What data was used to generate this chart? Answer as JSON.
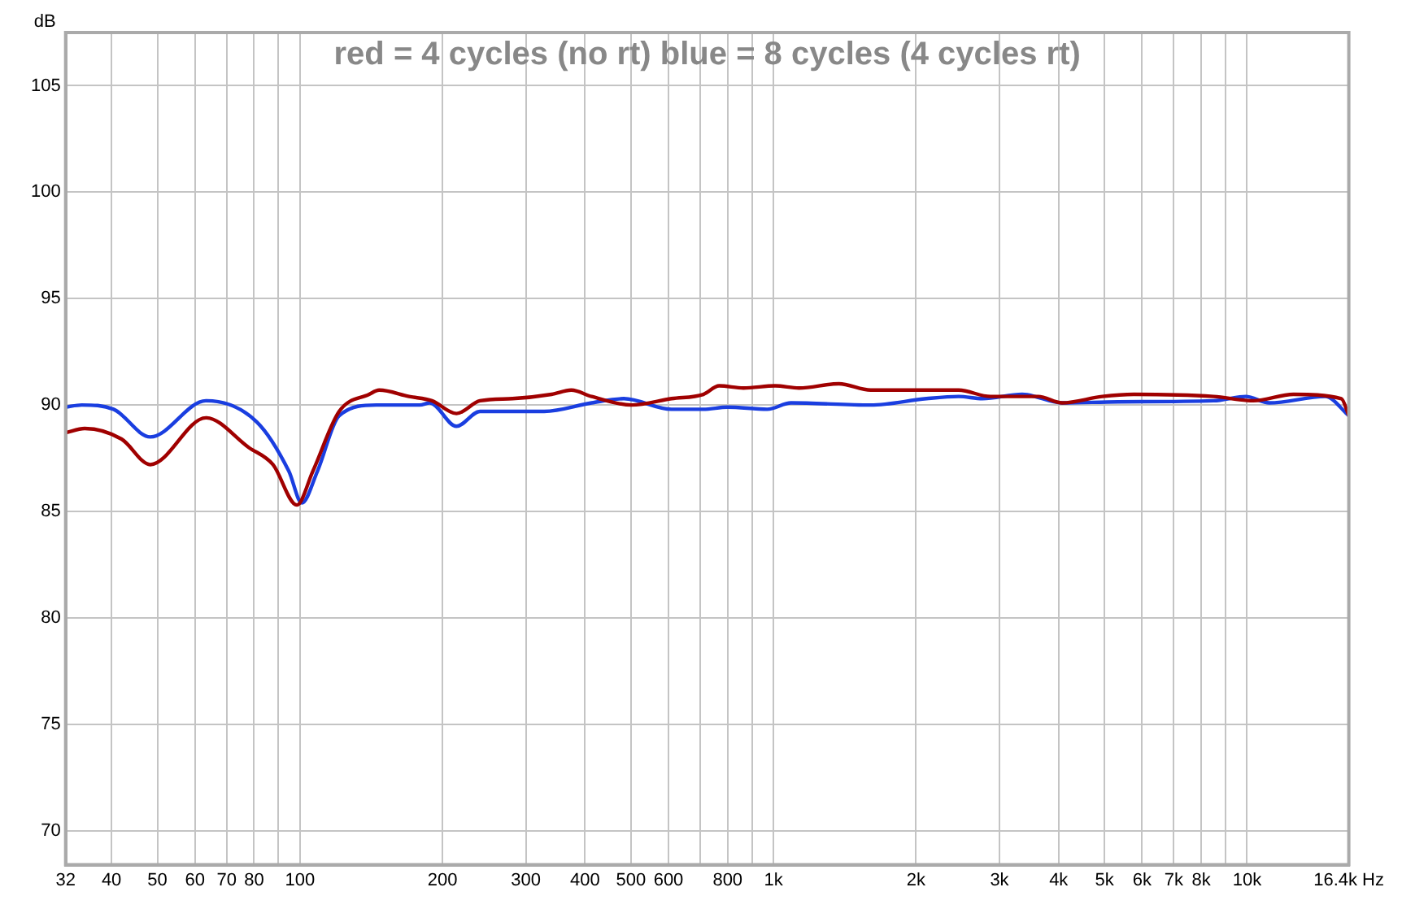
{
  "chart_data": {
    "type": "line",
    "title": "red = 4 cycles (no rt) blue = 8 cycles (4 cycles rt)",
    "ylabel": "dB",
    "log": "x",
    "grid": true,
    "legend": false,
    "marker": "none",
    "line_style": "solid",
    "xlim": [
      32,
      16400
    ],
    "xticks": [
      32,
      40,
      50,
      60,
      70,
      80,
      {
        "value": 90,
        "label": null
      },
      100,
      200,
      300,
      400,
      500,
      600,
      {
        "value": 700,
        "label": null
      },
      800,
      {
        "value": 900,
        "label": null
      },
      {
        "value": 1000,
        "label": "1k"
      },
      {
        "value": 2000,
        "label": "2k"
      },
      {
        "value": 3000,
        "label": "3k"
      },
      {
        "value": 4000,
        "label": "4k"
      },
      {
        "value": 5000,
        "label": "5k"
      },
      {
        "value": 6000,
        "label": "6k"
      },
      {
        "value": 7000,
        "label": "7k"
      },
      {
        "value": 8000,
        "label": "8k"
      },
      {
        "value": 9000,
        "label": null
      },
      {
        "value": 10000,
        "label": "10k"
      },
      {
        "value": 16400,
        "label": "16.4k Hz"
      }
    ],
    "ylim": [
      68.4,
      107.5
    ],
    "yticks": [
      70,
      75,
      80,
      85,
      90,
      95,
      100,
      105
    ],
    "series": [
      {
        "color": "#a00000",
        "x": [
          32,
          35.1,
          42,
          48.3,
          63.3,
          78,
          87.7,
          98.5,
          106.5,
          121,
          140,
          147,
          170,
          190,
          214,
          240,
          281,
          340,
          374,
          413,
          501,
          609,
          711,
          768,
          864,
          1008,
          1132,
          1374,
          1604,
          2104,
          2460,
          2871,
          3623,
          4068,
          4944,
          5770,
          8496,
          10314,
          12534,
          15818,
          16400
        ],
        "values": [
          88.7,
          88.9,
          88.4,
          87.2,
          89.4,
          88.0,
          87.2,
          85.3,
          86.9,
          89.7,
          90.5,
          90.7,
          90.4,
          90.2,
          89.6,
          90.2,
          90.3,
          90.5,
          90.7,
          90.4,
          90.0,
          90.3,
          90.5,
          90.9,
          90.8,
          90.9,
          90.8,
          91.0,
          90.7,
          90.7,
          90.7,
          90.4,
          90.4,
          90.1,
          90.4,
          90.5,
          90.4,
          90.2,
          90.5,
          90.3,
          89.5
        ]
      },
      {
        "color": "#1a3ee0",
        "x": [
          32,
          34.6,
          40.4,
          48.3,
          63.3,
          81.1,
          94.7,
          100.9,
          108.9,
          121,
          145,
          179,
          188,
          214,
          240,
          328,
          413,
          483,
          609,
          711,
          799,
          970,
          1089,
          1604,
          2104,
          2460,
          2762,
          3351,
          4068,
          5338,
          8496,
          9936,
          11146,
          14627,
          16400
        ],
        "values": [
          89.9,
          90.0,
          89.8,
          88.5,
          90.2,
          89.2,
          86.9,
          85.4,
          86.9,
          89.5,
          90.0,
          90.0,
          90.1,
          89.0,
          89.7,
          89.7,
          90.1,
          90.3,
          89.8,
          89.8,
          89.9,
          89.8,
          90.1,
          90.0,
          90.3,
          90.4,
          90.3,
          90.5,
          90.1,
          90.15,
          90.2,
          90.4,
          90.1,
          90.4,
          89.5
        ]
      }
    ]
  }
}
